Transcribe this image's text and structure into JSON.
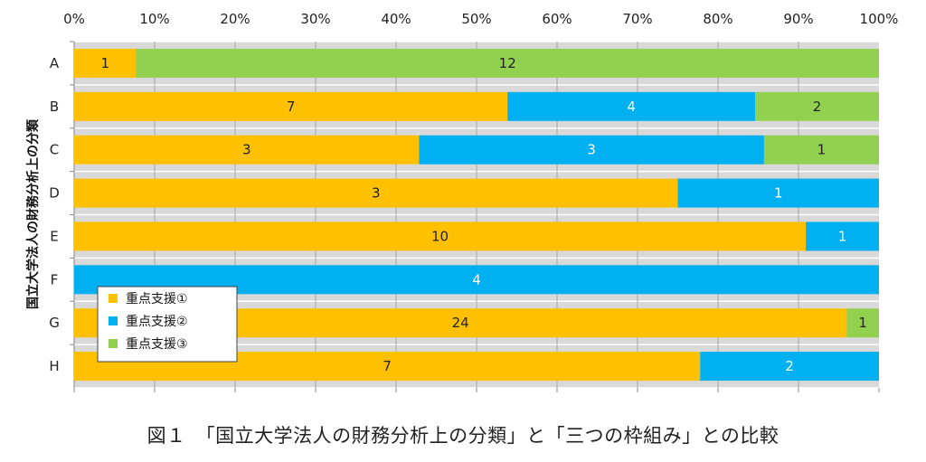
{
  "chart_data": {
    "type": "bar",
    "orientation": "horizontal",
    "stacked": "percent",
    "categories": [
      "A",
      "B",
      "C",
      "D",
      "E",
      "F",
      "G",
      "H"
    ],
    "series": [
      {
        "name": "重点支援①",
        "color": "#FFC000",
        "label_color": "#222222",
        "values": [
          1,
          7,
          3,
          3,
          10,
          0,
          24,
          7
        ]
      },
      {
        "name": "重点支援②",
        "color": "#00B0F0",
        "label_color": "#FFFFFF",
        "values": [
          0,
          4,
          3,
          1,
          1,
          4,
          0,
          2
        ]
      },
      {
        "name": "重点支援③",
        "color": "#92D050",
        "label_color": "#222222",
        "values": [
          12,
          2,
          1,
          0,
          0,
          0,
          1,
          0
        ]
      }
    ],
    "x_ticks": [
      "0%",
      "10%",
      "20%",
      "30%",
      "40%",
      "50%",
      "60%",
      "70%",
      "80%",
      "90%",
      "100%"
    ],
    "xlim": [
      0,
      100
    ],
    "ylabel": "国立大学法人の財務分析上の分類",
    "caption": "図１　「国立大学法人の財務分析上の分類」と「三つの枠組み」との比較",
    "grid": true,
    "legend_position": "lower-left"
  }
}
